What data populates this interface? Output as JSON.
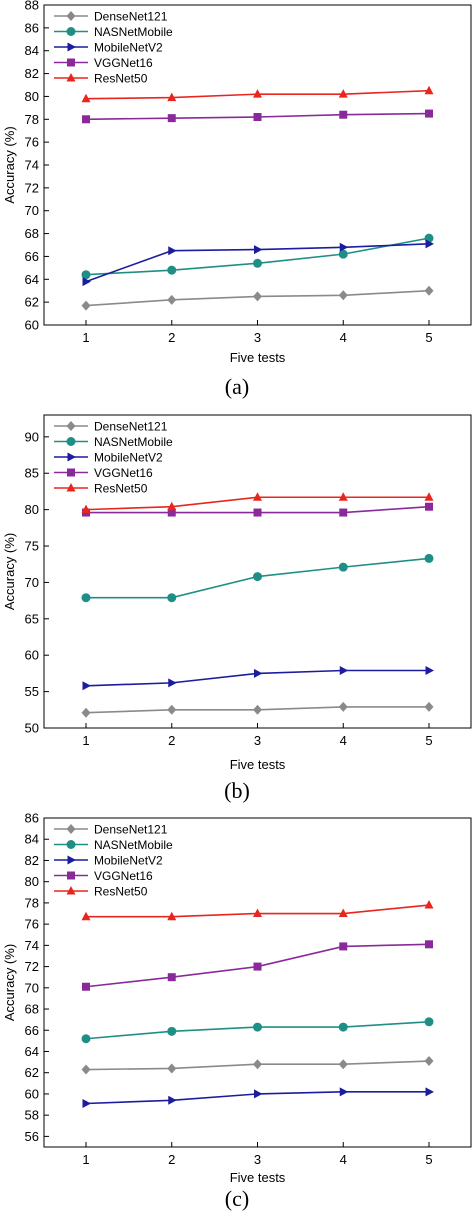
{
  "chart_data": [
    {
      "type": "line",
      "caption": "(a)",
      "xlabel": "Five tests",
      "ylabel": "Accuracy (%)",
      "x": [
        1,
        2,
        3,
        4,
        5
      ],
      "xticks": [
        "1",
        "2",
        "3",
        "4",
        "5"
      ],
      "ylim": [
        60,
        88
      ],
      "yticks": [
        60,
        62,
        64,
        66,
        68,
        70,
        72,
        74,
        76,
        78,
        80,
        82,
        84,
        86,
        88
      ],
      "legend_position": "top-left",
      "series": [
        {
          "name": "DenseNet121",
          "color": "#8a8a8a",
          "marker": "diamond",
          "values": [
            61.7,
            62.2,
            62.5,
            62.6,
            63.0
          ]
        },
        {
          "name": "NASNetMobile",
          "color": "#1f8f86",
          "marker": "circle",
          "values": [
            64.4,
            64.8,
            65.4,
            66.2,
            67.6
          ]
        },
        {
          "name": "MobileNetV2",
          "color": "#1c1c9e",
          "marker": "triangle-right",
          "values": [
            63.8,
            66.5,
            66.6,
            66.8,
            67.1
          ]
        },
        {
          "name": "VGGNet16",
          "color": "#8a2a9a",
          "marker": "square",
          "values": [
            78.0,
            78.1,
            78.2,
            78.4,
            78.5
          ]
        },
        {
          "name": "ResNet50",
          "color": "#e8261f",
          "marker": "triangle-up",
          "values": [
            79.8,
            79.9,
            80.2,
            80.2,
            80.5
          ]
        }
      ]
    },
    {
      "type": "line",
      "caption": "(b)",
      "xlabel": "Five tests",
      "ylabel": "Accuracy (%)",
      "x": [
        1,
        2,
        3,
        4,
        5
      ],
      "xticks": [
        "1",
        "2",
        "3",
        "4",
        "5"
      ],
      "ylim": [
        50,
        93
      ],
      "yticks": [
        50,
        55,
        60,
        65,
        70,
        75,
        80,
        85,
        90
      ],
      "legend_position": "top-left",
      "series": [
        {
          "name": "DenseNet121",
          "color": "#8a8a8a",
          "marker": "diamond",
          "values": [
            52.1,
            52.5,
            52.5,
            52.9,
            52.9
          ]
        },
        {
          "name": "NASNetMobile",
          "color": "#1f8f86",
          "marker": "circle",
          "values": [
            67.9,
            67.9,
            70.8,
            72.1,
            73.3
          ]
        },
        {
          "name": "MobileNetV2",
          "color": "#1c1c9e",
          "marker": "triangle-right",
          "values": [
            55.8,
            56.2,
            57.5,
            57.9,
            57.9
          ]
        },
        {
          "name": "VGGNet16",
          "color": "#8a2a9a",
          "marker": "square",
          "values": [
            79.6,
            79.6,
            79.6,
            79.6,
            80.4
          ]
        },
        {
          "name": "ResNet50",
          "color": "#e8261f",
          "marker": "triangle-up",
          "values": [
            80.0,
            80.4,
            81.7,
            81.7,
            81.7
          ]
        }
      ]
    },
    {
      "type": "line",
      "caption": "(c)",
      "xlabel": "Five tests",
      "ylabel": "Accuracy (%)",
      "x": [
        1,
        2,
        3,
        4,
        5
      ],
      "xticks": [
        "1",
        "2",
        "3",
        "4",
        "5"
      ],
      "ylim": [
        55,
        86
      ],
      "yticks": [
        56,
        58,
        60,
        62,
        64,
        66,
        68,
        70,
        72,
        74,
        76,
        78,
        80,
        82,
        84,
        86
      ],
      "legend_position": "top-left",
      "series": [
        {
          "name": "DenseNet121",
          "color": "#8a8a8a",
          "marker": "diamond",
          "values": [
            62.3,
            62.4,
            62.8,
            62.8,
            63.1
          ]
        },
        {
          "name": "NASNetMobile",
          "color": "#1f8f86",
          "marker": "circle",
          "values": [
            65.2,
            65.9,
            66.3,
            66.3,
            66.8
          ]
        },
        {
          "name": "MobileNetV2",
          "color": "#1c1c9e",
          "marker": "triangle-right",
          "values": [
            59.1,
            59.4,
            60.0,
            60.2,
            60.2
          ]
        },
        {
          "name": "VGGNet16",
          "color": "#8a2a9a",
          "marker": "square",
          "values": [
            70.1,
            71.0,
            72.0,
            73.9,
            74.1
          ]
        },
        {
          "name": "ResNet50",
          "color": "#e8261f",
          "marker": "triangle-up",
          "values": [
            76.7,
            76.7,
            77.0,
            77.0,
            77.8
          ]
        }
      ]
    }
  ]
}
